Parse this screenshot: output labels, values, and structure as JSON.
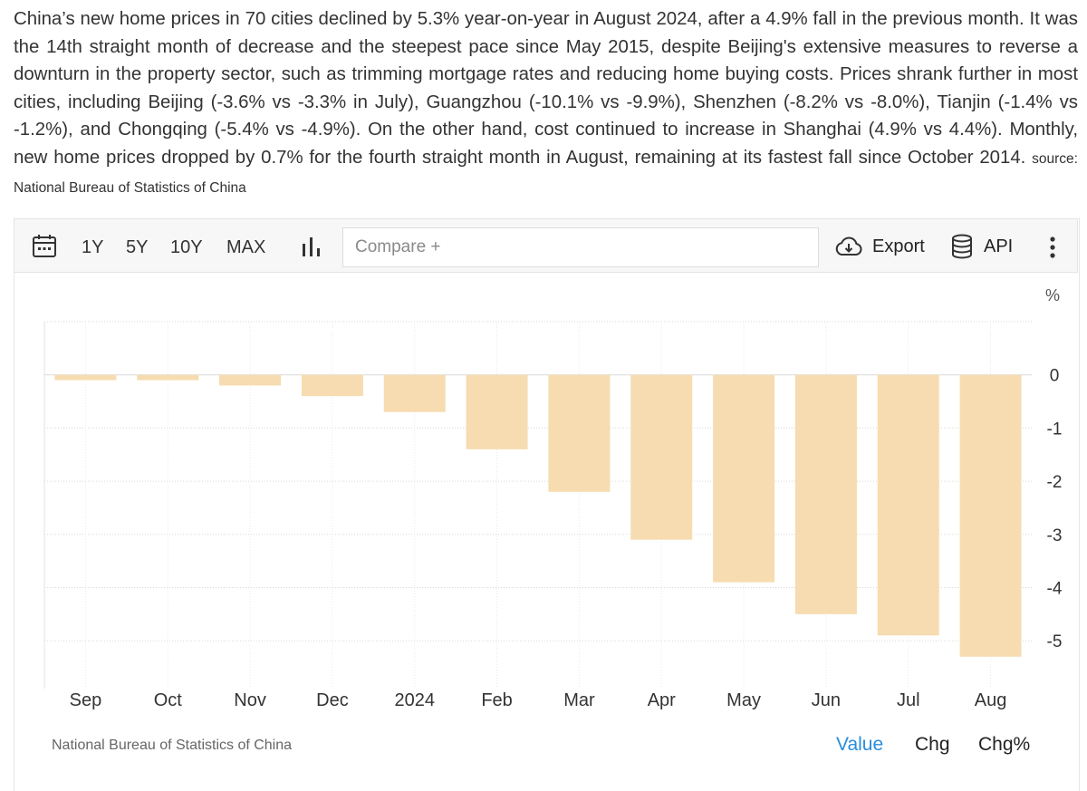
{
  "description": {
    "text": "China’s new home prices in 70 cities declined by 5.3% year-on-year in August 2024, after a 4.9% fall in the previous month. It was the 14th straight month of decrease and the steepest pace since May 2015, despite Beijing's extensive measures to reverse a downturn in the property sector, such as trimming mortgage rates and reducing home buying costs. Prices shrank further in most cities, including Beijing (-3.6% vs -3.3% in July), Guangzhou (-10.1% vs -9.9%), Shenzhen (-8.2% vs -8.0%), Tianjin (-1.4% vs -1.2%), and Chongqing (-5.4% vs -4.9%). On the other hand, cost continued to increase in Shanghai (4.9% vs 4.4%). Monthly, new home prices dropped by 0.7% for the fourth straight month in August, remaining at its fastest fall since October 2014.",
    "source": "source: National Bureau of Statistics of China"
  },
  "toolbar": {
    "ranges": [
      "1Y",
      "5Y",
      "10Y",
      "MAX"
    ],
    "compare_placeholder": "Compare +",
    "export_label": "Export",
    "api_label": "API"
  },
  "footer": {
    "source": "National Bureau of Statistics of China",
    "tabs": [
      "Value",
      "Chg",
      "Chg%"
    ],
    "active_tab": "Value"
  },
  "colors": {
    "bar": "#f6dcb0",
    "active_tab": "#2a8ddb",
    "grid": "#d9d9d9"
  },
  "chart_data": {
    "type": "bar",
    "categories": [
      "Sep",
      "Oct",
      "Nov",
      "Dec",
      "2024",
      "Feb",
      "Mar",
      "Apr",
      "May",
      "Jun",
      "Jul",
      "Aug"
    ],
    "values": [
      -0.1,
      -0.1,
      -0.2,
      -0.4,
      -0.7,
      -1.4,
      -2.2,
      -3.1,
      -3.9,
      -4.5,
      -4.9,
      -5.3
    ],
    "unit": "%",
    "yticks": [
      0,
      -1,
      -2,
      -3,
      -4,
      -5
    ],
    "ylim": [
      -5.9,
      1.0
    ],
    "grid": true,
    "title": "",
    "xlabel": "",
    "ylabel": ""
  }
}
